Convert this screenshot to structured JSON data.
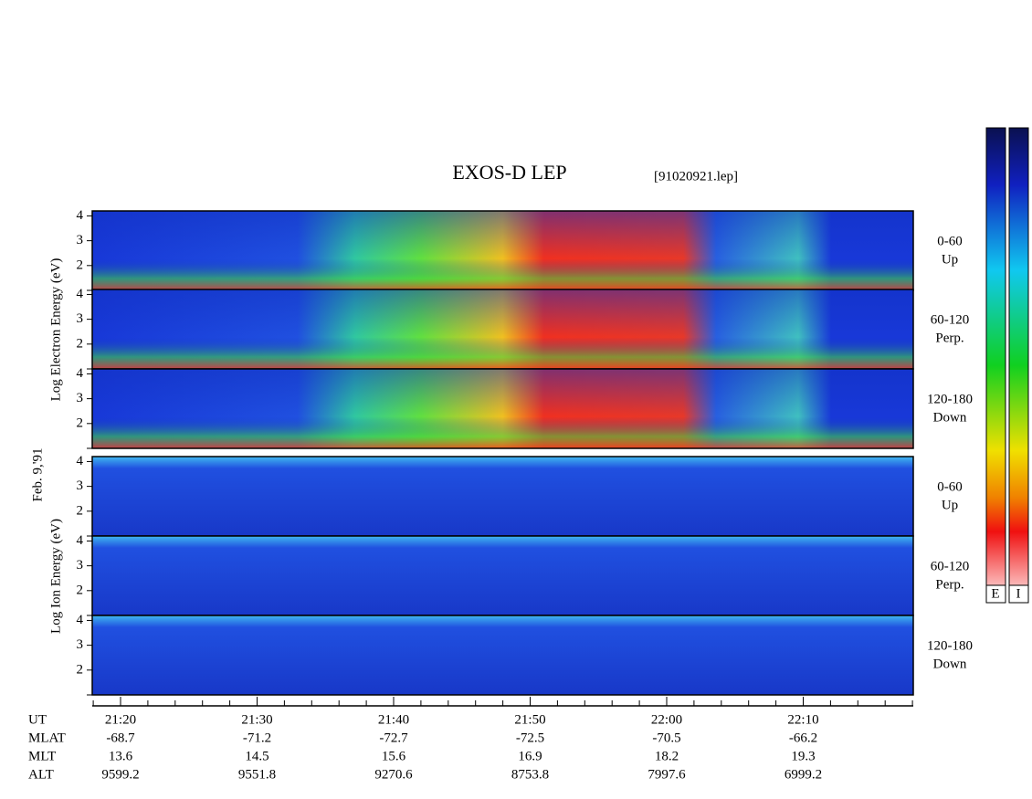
{
  "title": "EXOS-D LEP",
  "file": "[91020921.lep]",
  "date": "Feb. 9,'91",
  "groups": [
    {
      "label": "Log Electron Energy (eV)",
      "panels": [
        {
          "angle": "0-60",
          "dir": "Up"
        },
        {
          "angle": "60-120",
          "dir": "Perp."
        },
        {
          "angle": "120-180",
          "dir": "Down"
        }
      ]
    },
    {
      "label": "Log Ion Energy (eV)",
      "panels": [
        {
          "angle": "0-60",
          "dir": "Up"
        },
        {
          "angle": "60-120",
          "dir": "Perp."
        },
        {
          "angle": "120-180",
          "dir": "Down"
        }
      ]
    }
  ],
  "ylim": [
    1,
    4.2
  ],
  "yticks": [
    2,
    3,
    4
  ],
  "rows": [
    {
      "name": "UT",
      "values": [
        "21:20",
        "21:30",
        "21:40",
        "21:50",
        "22:00",
        "22:10"
      ]
    },
    {
      "name": "MLAT",
      "values": [
        -68.7,
        -71.2,
        -72.7,
        -72.5,
        -70.5,
        -66.2
      ]
    },
    {
      "name": "MLT",
      "values": [
        13.6,
        14.5,
        15.6,
        16.9,
        18.2,
        19.3
      ]
    },
    {
      "name": "ALT",
      "values": [
        9599.2,
        9551.8,
        9270.6,
        8753.8,
        7997.6,
        6999.2
      ]
    }
  ],
  "colorbars": [
    "E",
    "I"
  ]
}
